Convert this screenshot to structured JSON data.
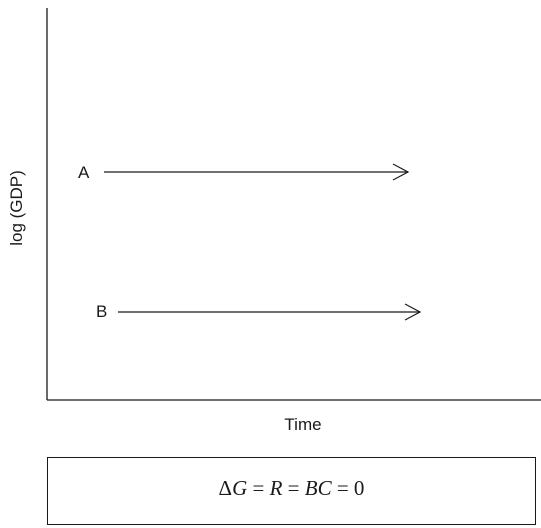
{
  "axes": {
    "ylabel": "log (GDP)",
    "xlabel": "Time"
  },
  "paths": {
    "A": {
      "label": "A"
    },
    "B": {
      "label": "B"
    }
  },
  "equation": {
    "parts": [
      {
        "text": "Δ",
        "italic": false
      },
      {
        "text": "G",
        "italic": true
      },
      {
        "text": " = ",
        "italic": false
      },
      {
        "text": "R",
        "italic": true
      },
      {
        "text": " = ",
        "italic": false
      },
      {
        "text": "BC",
        "italic": true
      },
      {
        "text": " = 0",
        "italic": false
      }
    ]
  }
}
